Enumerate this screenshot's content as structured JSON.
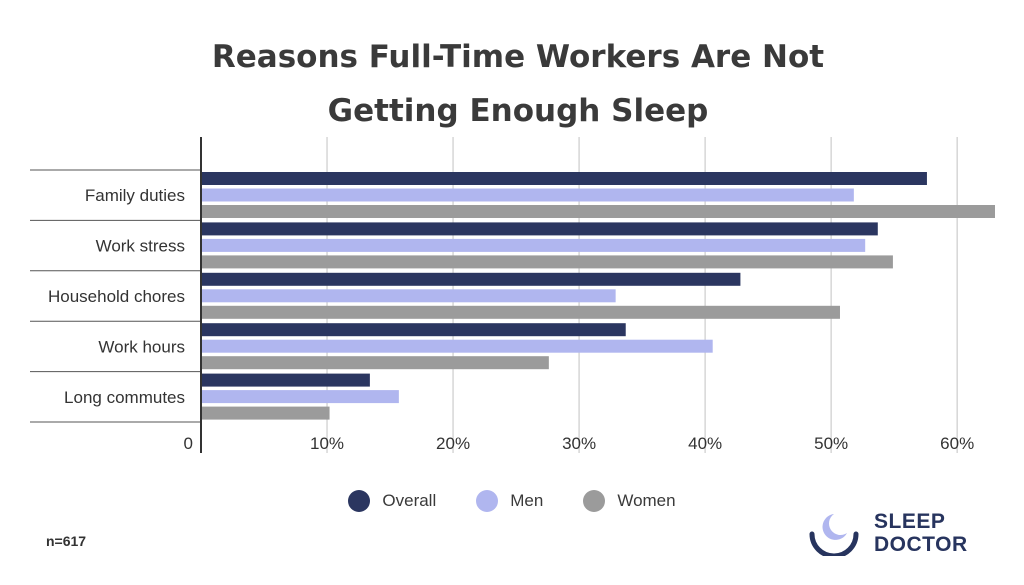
{
  "chart_data": {
    "type": "bar",
    "orientation": "horizontal",
    "title": "Reasons Full-Time Workers Are Not Getting Enough Sleep",
    "title_lines": [
      "Reasons Full-Time Workers Are Not",
      "Getting Enough Sleep"
    ],
    "categories": [
      "Family duties",
      "Work stress",
      "Household chores",
      "Work hours",
      "Long commutes"
    ],
    "series": [
      {
        "name": "Overall",
        "color": "#2b3660",
        "values": [
          57.6,
          53.7,
          42.8,
          33.7,
          13.4
        ]
      },
      {
        "name": "Men",
        "color": "#b0b6ef",
        "values": [
          51.8,
          52.7,
          32.9,
          40.6,
          15.7
        ]
      },
      {
        "name": "Women",
        "color": "#9b9b9b",
        "values": [
          63.0,
          54.9,
          50.7,
          27.6,
          10.2
        ]
      }
    ],
    "xlim": [
      0,
      63
    ],
    "xticks": [
      0,
      10,
      20,
      30,
      40,
      50,
      60
    ],
    "xtick_labels": [
      "0",
      "10%",
      "20%",
      "30%",
      "40%",
      "50%",
      "60%"
    ],
    "grid": true,
    "legend_position": "bottom"
  },
  "note": "n=617",
  "brand": {
    "line1": "SLEEP",
    "line2": "DOCTOR",
    "icon": "moon-icon",
    "color": "#27345e"
  }
}
